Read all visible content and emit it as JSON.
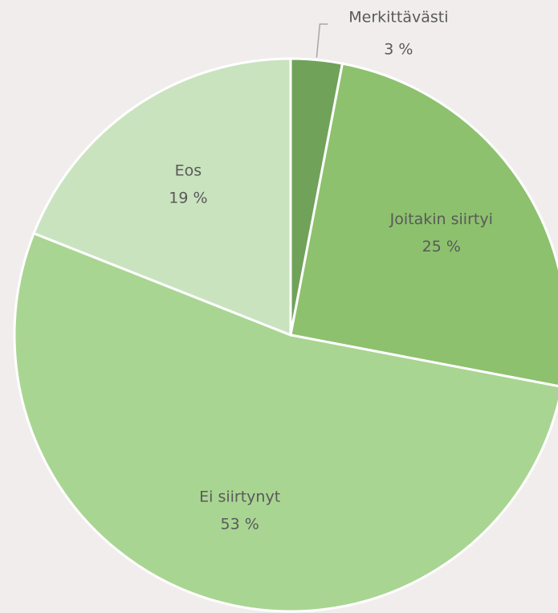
{
  "chart_data": {
    "type": "pie",
    "categories": [
      "Merkittävästi",
      "Joitakin siirtyi",
      "Ei siirtynyt",
      "Eos"
    ],
    "values": [
      3,
      25,
      53,
      19
    ],
    "value_labels": [
      "3 %",
      "25 %",
      "53 %",
      "19 %"
    ],
    "colors": [
      "#70a25a",
      "#8dc16e",
      "#a9d592",
      "#c9e3be"
    ]
  }
}
